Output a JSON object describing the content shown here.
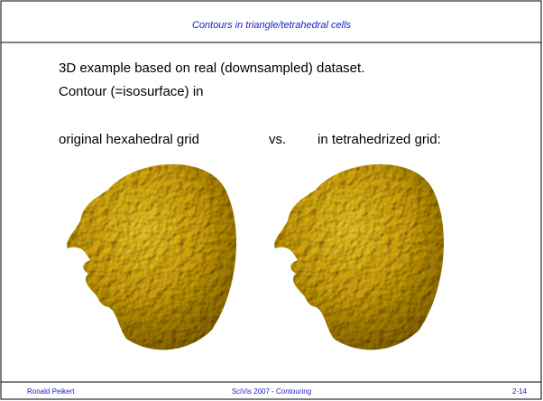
{
  "header": {
    "title": "Contours in triangle/tetrahedral cells"
  },
  "body": {
    "lines": [
      "3D example based on real (downsampled) dataset.",
      "Contour (=isosurface) in"
    ],
    "labels": {
      "left": "original hexahedral grid",
      "middle": "vs.",
      "right": "in tetrahedrized grid:"
    }
  },
  "footer": {
    "author": "Ronald Peikert",
    "course": "SciVis 2007 - Contouring",
    "page": "2-14"
  }
}
